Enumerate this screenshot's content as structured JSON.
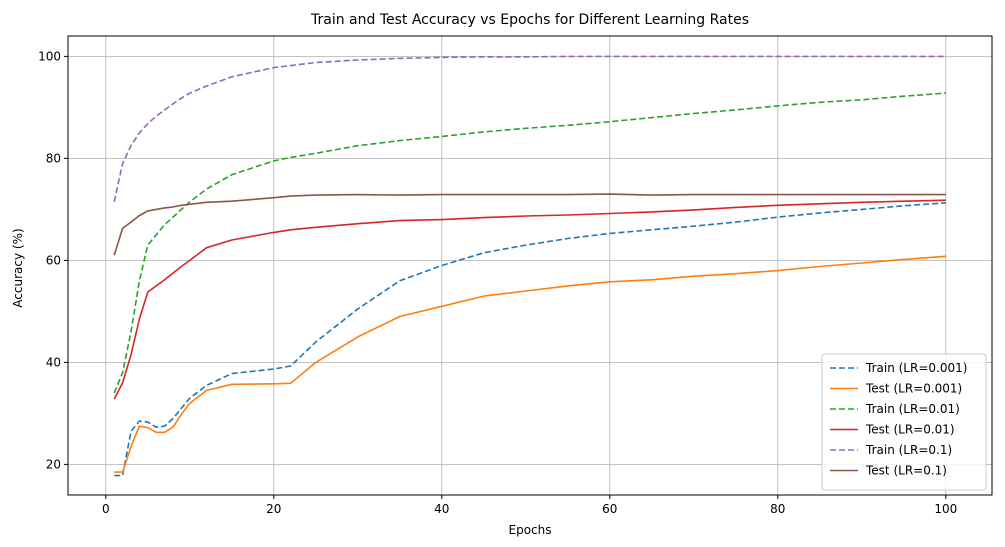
{
  "chart_data": {
    "type": "line",
    "title": "Train and Test Accuracy vs Epochs for Different Learning Rates",
    "xlabel": "Epochs",
    "ylabel": "Accuracy (%)",
    "xlim": [
      -4.5,
      105.5
    ],
    "ylim": [
      14,
      104
    ],
    "xticks": [
      0,
      20,
      40,
      60,
      80,
      100
    ],
    "yticks": [
      20,
      40,
      60,
      80,
      100
    ],
    "grid": true,
    "legend_position": "lower right",
    "x": [
      1,
      2,
      3,
      4,
      5,
      6,
      7,
      8,
      9,
      10,
      12,
      15,
      20,
      22,
      25,
      30,
      35,
      40,
      45,
      50,
      55,
      60,
      65,
      70,
      75,
      80,
      85,
      90,
      95,
      100
    ],
    "series": [
      {
        "name": "Train (LR=0.001)",
        "color": "#1f77b4",
        "dash": "dashed",
        "values": [
          17.8,
          17.8,
          26.5,
          28.5,
          28.3,
          27.3,
          27.5,
          29.0,
          31.0,
          33.0,
          35.5,
          37.8,
          38.7,
          39.3,
          44.0,
          50.5,
          56.0,
          59.0,
          61.5,
          63.0,
          64.3,
          65.3,
          66.0,
          66.7,
          67.5,
          68.5,
          69.3,
          70.0,
          70.7,
          71.3
        ]
      },
      {
        "name": "Test (LR=0.001)",
        "color": "#ff7f0e",
        "dash": "solid",
        "values": [
          18.5,
          18.5,
          23.5,
          27.5,
          27.2,
          26.3,
          26.3,
          27.3,
          29.8,
          32.0,
          34.5,
          35.7,
          35.8,
          35.9,
          40.0,
          45.0,
          49.0,
          51.0,
          53.0,
          54.0,
          55.0,
          55.8,
          56.2,
          56.9,
          57.4,
          58.0,
          58.8,
          59.5,
          60.2,
          60.8
        ]
      },
      {
        "name": "Train (LR=0.01)",
        "color": "#2ca02c",
        "dash": "dashed",
        "values": [
          34.0,
          38.0,
          46.0,
          56.0,
          63.0,
          65.0,
          67.0,
          68.5,
          70.0,
          71.5,
          74.0,
          76.8,
          79.5,
          80.2,
          81.0,
          82.5,
          83.5,
          84.3,
          85.2,
          85.9,
          86.5,
          87.2,
          88.0,
          88.8,
          89.5,
          90.3,
          91.0,
          91.5,
          92.2,
          92.8
        ]
      },
      {
        "name": "Test (LR=0.01)",
        "color": "#d62728",
        "dash": "solid",
        "values": [
          32.8,
          36.0,
          41.5,
          48.5,
          53.8,
          55.0,
          56.2,
          57.5,
          58.8,
          60.0,
          62.5,
          64.0,
          65.5,
          66.0,
          66.5,
          67.2,
          67.8,
          68.0,
          68.4,
          68.7,
          68.9,
          69.2,
          69.5,
          69.9,
          70.4,
          70.8,
          71.1,
          71.4,
          71.6,
          71.8
        ]
      },
      {
        "name": "Train (LR=0.1)",
        "color": "#9467bd",
        "dash": "dashed",
        "values": [
          71.5,
          79.0,
          82.5,
          85.0,
          86.8,
          88.3,
          89.5,
          90.7,
          91.8,
          92.8,
          94.2,
          96.0,
          97.8,
          98.2,
          98.8,
          99.3,
          99.6,
          99.8,
          99.9,
          99.9,
          100.0,
          100.0,
          100.0,
          100.0,
          100.0,
          100.0,
          100.0,
          100.0,
          100.0,
          100.0
        ]
      },
      {
        "name": "Test (LR=0.1)",
        "color": "#8c564b",
        "dash": "solid",
        "values": [
          61.0,
          66.3,
          67.5,
          68.8,
          69.7,
          70.0,
          70.3,
          70.5,
          70.8,
          71.0,
          71.4,
          71.6,
          72.3,
          72.6,
          72.8,
          72.9,
          72.8,
          72.9,
          72.9,
          72.9,
          72.9,
          73.0,
          72.8,
          72.9,
          72.9,
          72.9,
          72.9,
          72.9,
          72.9,
          72.9
        ]
      }
    ]
  }
}
